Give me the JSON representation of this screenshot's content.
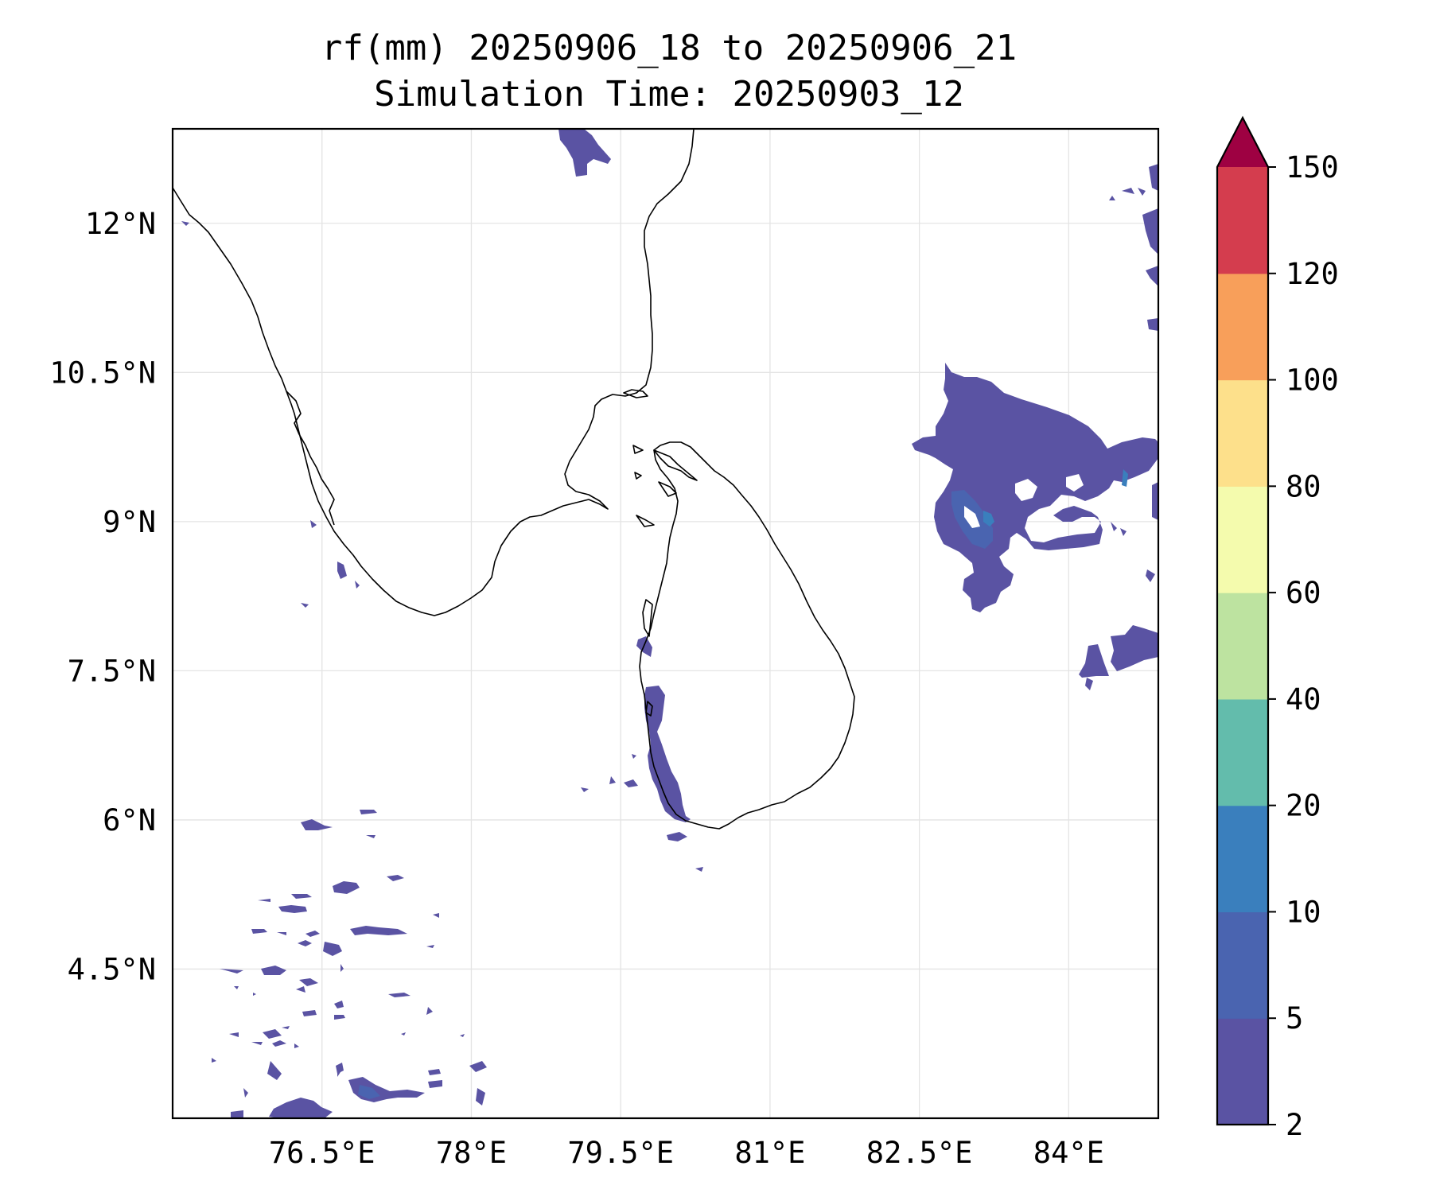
{
  "title": {
    "line1": "rf(mm) 20250906_18 to 20250906_21",
    "line2": "Simulation Time: 20250903_12"
  },
  "map": {
    "lon_range": [
      75.0,
      84.9
    ],
    "lat_range": [
      3.0,
      12.95
    ],
    "lon_ticks": [
      {
        "value": 76.5,
        "label": "76.5°E"
      },
      {
        "value": 78.0,
        "label": "78°E"
      },
      {
        "value": 79.5,
        "label": "79.5°E"
      },
      {
        "value": 81.0,
        "label": "81°E"
      },
      {
        "value": 82.5,
        "label": "82.5°E"
      },
      {
        "value": 84.0,
        "label": "84°E"
      }
    ],
    "lat_ticks": [
      {
        "value": 12.0,
        "label": "12°N"
      },
      {
        "value": 10.5,
        "label": "10.5°N"
      },
      {
        "value": 9.0,
        "label": "9°N"
      },
      {
        "value": 7.5,
        "label": "7.5°N"
      },
      {
        "value": 6.0,
        "label": "6°N"
      },
      {
        "value": 4.5,
        "label": "4.5°N"
      }
    ],
    "grid": true,
    "coastline_color": "#000000"
  },
  "colorbar": {
    "levels": [
      2,
      5,
      10,
      20,
      40,
      60,
      80,
      100,
      120,
      150
    ],
    "tick_labels": [
      "2",
      "5",
      "10",
      "20",
      "40",
      "60",
      "80",
      "100",
      "120",
      "150"
    ],
    "colors": [
      "#5a53a3",
      "#4a64b0",
      "#3a7fbd",
      "#63bcac",
      "#bde3a0",
      "#f4fbad",
      "#fde08b",
      "#f89f5a",
      "#d43d4e"
    ],
    "extend_color": "#9e0142",
    "extend": "max"
  },
  "rain_colors": {
    "light": "#5a53a3",
    "moderate": "#4a64b0",
    "heavy": "#3a7fbd"
  }
}
